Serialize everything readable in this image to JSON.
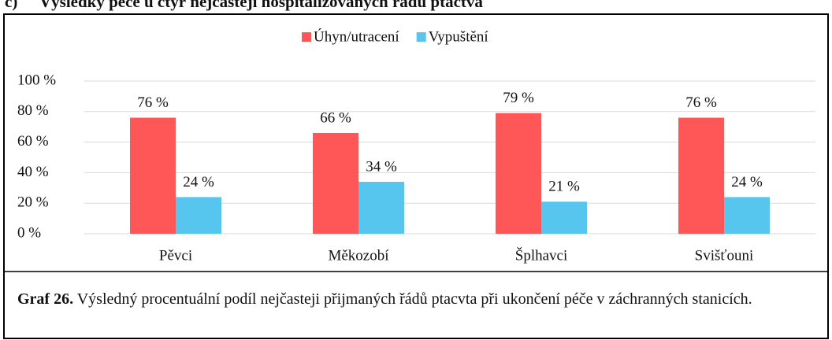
{
  "heading": {
    "number": "c)",
    "title": "Výsledky péče u čtyř nejčastěji hospitalizovaných řádů ptactva"
  },
  "chart_data": {
    "type": "bar",
    "categories": [
      "Pěvci",
      "Měkozobí",
      "Šplhavci",
      "Svišťouni"
    ],
    "series": [
      {
        "name": "Úhyn/utracení",
        "color": "#ff5757",
        "values": [
          76,
          66,
          79,
          76
        ],
        "value_labels": [
          "76 %",
          "66 %",
          "79 %",
          "76 %"
        ]
      },
      {
        "name": "Vypuštění",
        "color": "#56c6ef",
        "values": [
          24,
          34,
          21,
          24
        ],
        "value_labels": [
          "24 %",
          "34 %",
          "21 %",
          "24 %"
        ]
      }
    ],
    "ylim": [
      0,
      100
    ],
    "yticks": [
      {
        "value": 0,
        "label": "0 %"
      },
      {
        "value": 20,
        "label": "20 %"
      },
      {
        "value": 40,
        "label": "40 %"
      },
      {
        "value": 60,
        "label": "60 %"
      },
      {
        "value": 80,
        "label": "80 %"
      },
      {
        "value": 100,
        "label": "100 %"
      }
    ],
    "grid": true,
    "legend": "top"
  },
  "caption": {
    "label": "Graf 26.",
    "text": "Výsledný procentuální podíl nejčasteji přijmaných řádů ptacvta při ukončení péče v záchranných stanicích."
  }
}
